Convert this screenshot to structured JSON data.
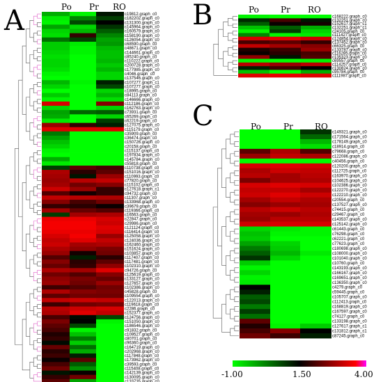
{
  "chart_data": [
    {
      "type": "heatmap",
      "panel": "A",
      "columns": [
        "Po",
        "Pr",
        "RO"
      ],
      "rows": [
        "c19812.graph_c0",
        "c182202.graph_c0",
        "c131300.graph_c0",
        "c145964.graph_c0",
        "c160579.graph_c0",
        "c158190.graph_c0",
        "c126054.graph_c0",
        "c68590.graph_c0",
        "c48671.graph_c0",
        "c144661.graph_c0",
        "c85240.graph_c0",
        "c110222.graph_c0",
        "c200728.graph_c0",
        "c177985.graph_c0",
        "c4046.graph_c0",
        "c137546.graph_c0",
        "c107277.graph_c1",
        "c107277.graph_c0",
        "c18995.graph_c0",
        "c84113.graph_c0",
        "c146666.graph_c0",
        "c112186.graph_c0",
        "c162763.graph_c0",
        "c73931.graph_c0",
        "c65269.graph_c0",
        "c62219.graph_c0",
        "c127075.graph_c0",
        "c115179.graph_c0",
        "c35909.graph_c0",
        "c36474.graph_c0",
        "c150726.graph_c0",
        "c20158.graph_c0",
        "c115137.graph_c0",
        "c197834.graph_c0",
        "c145784.graph_c0",
        "c55818.graph_c0",
        "c110738.graph_c0",
        "c151016.graph_c0",
        "c110993.graph_c0",
        "c77820.graph_c0",
        "c115102.graph_c0",
        "c127618.graph_c1",
        "c94732.graph_c0",
        "c11307.graph_c0",
        "c133968.graph_c0",
        "c39679.graph_c0",
        "c119366.graph_c0",
        "c16563.graph_c0",
        "c22847.graph_c0",
        "c29986.graph_c0",
        "c121124.graph_c0",
        "c116414.graph_c0",
        "c125058.graph_c0",
        "c124036.graph_c0",
        "c162460.graph_c0",
        "c151624.graph_c0",
        "c103857.graph_c0",
        "c117407.graph_c0",
        "c117481.graph_c0",
        "c102310.graph_c0",
        "c94726.graph_c0",
        "c125619.graph_c0",
        "c133127.graph_c0",
        "c127657.graph_c0",
        "c102386.graph_c0",
        "c45828.graph_c0",
        "c109554.graph_c0",
        "c122013.graph_c0",
        "c119618.graph_c0",
        "c2286.graph_c0",
        "c152377.graph_c0",
        "c124756.graph_c0",
        "c151050.graph_c0",
        "c186546.graph_c0",
        "c91832.graph_c0",
        "c109527.graph_c0",
        "c80701.graph_c0",
        "c96360.graph_c0",
        "c164719.graph_c0",
        "c202968.graph_c0",
        "c117848.graph_c0",
        "c173962.graph_c0",
        "c39593.graph_c0",
        "c115408.graph_c0",
        "c142139.graph_c0",
        "c130095.graph_c0",
        "c133735.graph_c0"
      ],
      "values": [
        [
          -0.2,
          -0.9,
          1.3
        ],
        [
          -0.8,
          0.2,
          0.9
        ],
        [
          -0.9,
          0.8,
          1.5
        ],
        [
          -0.1,
          -0.6,
          1.0
        ],
        [
          -0.6,
          -0.3,
          0.6
        ],
        [
          -0.7,
          2.0,
          0.2
        ],
        [
          0.4,
          0.9,
          -0.1
        ],
        [
          -0.5,
          -0.8,
          0.0
        ],
        [
          -0.5,
          -0.9,
          -0.3
        ],
        [
          -0.6,
          -0.9,
          -0.4
        ],
        [
          -0.7,
          -1.0,
          -0.4
        ],
        [
          -0.6,
          -1.0,
          -0.3
        ],
        [
          -0.6,
          -1.0,
          -0.5
        ],
        [
          -0.7,
          -1.0,
          -0.3
        ],
        [
          -0.9,
          -1.0,
          -0.6
        ],
        [
          -1.0,
          -1.0,
          -0.6
        ],
        [
          -0.3,
          -0.9,
          1.2
        ],
        [
          -0.6,
          -1.0,
          0.8
        ],
        [
          -1.0,
          -1.0,
          -0.6
        ],
        [
          -0.5,
          -1.0,
          -0.3
        ],
        [
          -0.9,
          -1.0,
          -0.7
        ],
        [
          3.6,
          -1.0,
          2.8
        ],
        [
          -0.6,
          -1.0,
          -0.6
        ],
        [
          -0.1,
          0.5,
          0.6
        ],
        [
          -0.2,
          -1.0,
          -0.6
        ],
        [
          -0.8,
          -1.0,
          0.9
        ],
        [
          3.0,
          2.0,
          1.2
        ],
        [
          3.7,
          3.7,
          3.7
        ],
        [
          0.3,
          -1.0,
          -1.0
        ],
        [
          -0.1,
          -1.0,
          -1.0
        ],
        [
          -0.4,
          -1.0,
          -1.0
        ],
        [
          -0.6,
          -1.0,
          -1.0
        ],
        [
          -0.9,
          -1.0,
          -1.0
        ],
        [
          -1.0,
          -1.0,
          -1.0
        ],
        [
          -0.2,
          -1.0,
          -1.0
        ],
        [
          -0.8,
          -1.0,
          -1.0
        ],
        [
          0.9,
          2.4,
          2.2
        ],
        [
          3.2,
          1.9,
          2.4
        ],
        [
          3.1,
          1.3,
          3.0
        ],
        [
          3.0,
          3.3,
          3.4
        ],
        [
          3.1,
          2.6,
          2.8
        ],
        [
          3.5,
          3.0,
          2.0
        ],
        [
          2.3,
          1.7,
          2.0
        ],
        [
          3.4,
          3.3,
          3.2
        ],
        [
          2.8,
          2.2,
          2.6
        ],
        [
          2.0,
          1.9,
          1.6
        ],
        [
          3.1,
          2.5,
          2.3
        ],
        [
          0.9,
          3.1,
          3.2
        ],
        [
          3.8,
          3.8,
          3.6
        ],
        [
          3.9,
          3.9,
          3.5
        ],
        [
          3.9,
          3.9,
          3.7
        ],
        [
          3.8,
          3.8,
          3.6
        ],
        [
          3.6,
          3.9,
          3.0
        ],
        [
          3.4,
          3.7,
          3.4
        ],
        [
          3.5,
          3.1,
          3.2
        ],
        [
          3.2,
          2.9,
          2.7
        ],
        [
          3.0,
          1.7,
          2.6
        ],
        [
          2.3,
          1.2,
          1.9
        ],
        [
          2.8,
          1.9,
          2.4
        ],
        [
          2.5,
          2.0,
          2.9
        ],
        [
          3.2,
          3.1,
          3.7
        ],
        [
          2.6,
          2.3,
          2.8
        ],
        [
          2.9,
          2.7,
          2.5
        ],
        [
          3.0,
          2.6,
          3.0
        ],
        [
          2.1,
          2.3,
          2.6
        ],
        [
          3.2,
          2.8,
          2.7
        ],
        [
          2.4,
          2.6,
          2.6
        ],
        [
          3.4,
          3.5,
          3.4
        ],
        [
          2.1,
          2.6,
          2.7
        ],
        [
          3.3,
          3.5,
          3.6
        ],
        [
          3.2,
          3.7,
          3.4
        ],
        [
          2.2,
          1.4,
          0.8
        ],
        [
          2.7,
          1.5,
          -0.9
        ],
        [
          2.4,
          0.8,
          -1.0
        ],
        [
          2.2,
          -0.9,
          -1.0
        ],
        [
          1.8,
          -0.4,
          -1.0
        ],
        [
          2.0,
          0.3,
          -1.0
        ],
        [
          1.4,
          -0.5,
          -1.0
        ],
        [
          2.5,
          0.4,
          -1.0
        ],
        [
          1.9,
          -0.2,
          -1.0
        ],
        [
          2.1,
          1.2,
          -1.0
        ],
        [
          1.6,
          2.4,
          -1.0
        ],
        [
          2.2,
          0.6,
          -1.0
        ],
        [
          2.6,
          0.1,
          -1.0
        ],
        [
          1.3,
          1.6,
          -1.0
        ],
        [
          2.0,
          2.6,
          -1.0
        ],
        [
          2.4,
          -0.1,
          -1.0
        ]
      ]
    },
    {
      "type": "heatmap",
      "panel": "B",
      "columns": [
        "Po",
        "Pr",
        "RO"
      ],
      "rows": [
        "c168222.graph_c0",
        "c132251.graph_c0",
        "c152617.graph_c1",
        "c132251.graph_c1",
        "c24105.graph_c0",
        "c111427.graph_c0",
        "c124854.graph_c0",
        "c137452.graph_c0",
        "c66325.graph_c0",
        "c133787.graph_c0",
        "c116285.graph_c0",
        "c135323.graph_c0",
        "c69557.graph_c0",
        "c114257.graph_c0",
        "c130824.graph_c0",
        "c95784.graph_c0",
        "c111987.graph_c0"
      ],
      "values": [
        [
          -0.9,
          -1.0,
          -1.0
        ],
        [
          1.1,
          2.2,
          1.3
        ],
        [
          0.6,
          1.6,
          1.7
        ],
        [
          -0.4,
          0.6,
          -0.2
        ],
        [
          -0.9,
          0.9,
          -0.6
        ],
        [
          0.2,
          -0.9,
          -0.8
        ],
        [
          3.6,
          3.7,
          3.5
        ],
        [
          2.2,
          2.4,
          2.0
        ],
        [
          3.4,
          3.1,
          2.8
        ],
        [
          1.8,
          2.1,
          3.0
        ],
        [
          1.6,
          1.9,
          2.2
        ],
        [
          2.9,
          1.3,
          2.3
        ],
        [
          -0.9,
          -1.0,
          -0.9
        ],
        [
          3.3,
          3.0,
          3.3
        ],
        [
          1.2,
          2.1,
          1.5
        ],
        [
          -0.4,
          -1.0,
          -0.2
        ],
        [
          3.7,
          3.8,
          3.7
        ]
      ]
    },
    {
      "type": "heatmap",
      "panel": "C",
      "columns": [
        "Po",
        "Pr",
        "RO"
      ],
      "rows": [
        "c149321.graph_c0",
        "c171564.graph_c0",
        "c178149.graph_c0",
        "c18914.graph_c0",
        "c79668.graph_c0",
        "c122086.graph_c0",
        "c40456.graph_c0",
        "c120200.graph_c0",
        "c112725.graph_c0",
        "c163970.graph_c0",
        "c104625.graph_c0",
        "c102386.graph_c0",
        "c122270.graph_c0",
        "c122210.graph_c0",
        "c20554.graph_c0",
        "c137527.graph_c0",
        "c74415.graph_c0",
        "c29467.graph_c0",
        "c143537.graph_c0",
        "c125142.graph_c0",
        "c61443.graph_c0",
        "c76298.graph_c0",
        "c62221.graph_c0",
        "c77623.graph_c0",
        "c180698.graph_c0",
        "c108000.graph_c0",
        "c101040.graph_c0",
        "c10760.graph_c0",
        "c143193.graph_c0",
        "c166167.graph_c0",
        "c169651.graph_c0",
        "c136350.graph_c0",
        "c4279.graph_c0",
        "c59445.graph_c0",
        "c105707.graph_c0",
        "c112413.graph_c0",
        "c168819.graph_c0",
        "c167597.graph_c0",
        "c74127.graph_c0",
        "c133198.graph_c0",
        "c127617.graph_c1",
        "c131812.graph_c1",
        "c87245.graph_c0"
      ],
      "values": [
        [
          -1.0,
          -1.0,
          1.0
        ],
        [
          -1.0,
          -1.0,
          0.5
        ],
        [
          -1.0,
          -1.0,
          -0.3
        ],
        [
          -1.0,
          -1.0,
          -0.7
        ],
        [
          2.4,
          3.2,
          2.3
        ],
        [
          3.0,
          3.4,
          3.2
        ],
        [
          -1.0,
          -1.0,
          -1.0
        ],
        [
          3.6,
          3.7,
          3.6
        ],
        [
          3.2,
          3.5,
          3.4
        ],
        [
          3.3,
          3.1,
          3.3
        ],
        [
          2.7,
          3.1,
          3.2
        ],
        [
          3.6,
          3.7,
          3.6
        ],
        [
          3.4,
          3.4,
          3.1
        ],
        [
          3.5,
          3.7,
          3.5
        ],
        [
          3.1,
          3.4,
          3.2
        ],
        [
          2.8,
          3.0,
          3.1
        ],
        [
          3.3,
          3.5,
          3.3
        ],
        [
          3.1,
          3.0,
          3.2
        ],
        [
          3.0,
          3.3,
          3.3
        ],
        [
          3.5,
          3.6,
          3.6
        ],
        [
          -0.6,
          -0.8,
          -0.9
        ],
        [
          -0.4,
          -0.9,
          -0.9
        ],
        [
          -0.5,
          -1.0,
          -1.0
        ],
        [
          -0.1,
          -0.6,
          -1.0
        ],
        [
          0.3,
          -0.5,
          -1.0
        ],
        [
          0.6,
          -0.3,
          -0.8
        ],
        [
          1.0,
          -0.6,
          -1.0
        ],
        [
          -0.5,
          -1.0,
          -1.0
        ],
        [
          -0.9,
          -1.0,
          -1.0
        ],
        [
          -0.6,
          -1.0,
          -1.0
        ],
        [
          -0.9,
          -1.0,
          -1.0
        ],
        [
          -0.8,
          -1.0,
          -1.0
        ],
        [
          1.5,
          -1.0,
          -1.0
        ],
        [
          1.2,
          -1.0,
          -1.0
        ],
        [
          0.6,
          -1.0,
          -1.0
        ],
        [
          0.8,
          -1.0,
          -1.0
        ],
        [
          0.3,
          -1.0,
          -1.0
        ],
        [
          0.9,
          -1.0,
          -1.0
        ],
        [
          0.4,
          -1.0,
          -1.0
        ],
        [
          2.4,
          -1.0,
          -1.0
        ],
        [
          1.8,
          -0.9,
          -0.5
        ],
        [
          2.2,
          2.8,
          1.5
        ],
        [
          2.6,
          2.1,
          1.2
        ]
      ]
    }
  ],
  "panel_letters": {
    "a": "A",
    "b": "B",
    "c": "C"
  },
  "column_headers": {
    "po": "Po",
    "pr": "Pr",
    "ro": "RO"
  },
  "color_scale": {
    "min": -1.0,
    "mid": 1.5,
    "max": 4.0,
    "min_label": "-1.00",
    "mid_label": "1.50",
    "max_label": "4.00",
    "low_color": "#00ff00",
    "mid_color": "#000000",
    "high_color": "#ff0000",
    "top_color": "#ff00ff"
  }
}
